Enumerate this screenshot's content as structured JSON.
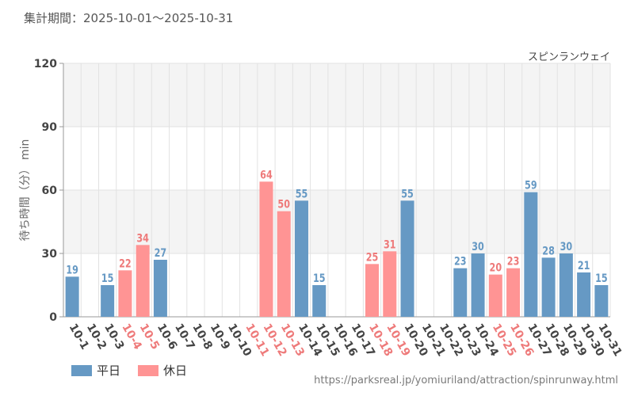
{
  "header": {
    "period_text": "集計期間：2025-10-01～2025-10-31",
    "attraction_name": "スピンランウェイ"
  },
  "footer": {
    "url": "https://parksreal.jp/yomiuriland/attraction/spinrunway.html"
  },
  "colors": {
    "weekday": "#6699c4",
    "holiday": "#ff9494",
    "holiday_label": "#ee7a7a",
    "axis_text": "#444444",
    "band": "#f4f4f4",
    "grid": "#e2e2e2"
  },
  "chart_data": {
    "type": "bar",
    "title": "",
    "xlabel": "",
    "ylabel": "待ち時間（分） min",
    "ylim": [
      0,
      120
    ],
    "yticks": [
      0,
      30,
      60,
      90,
      120
    ],
    "categories": [
      "10-1",
      "10-2",
      "10-3",
      "10-4",
      "10-5",
      "10-6",
      "10-7",
      "10-8",
      "10-9",
      "10-10",
      "10-11",
      "10-12",
      "10-13",
      "10-14",
      "10-15",
      "10-16",
      "10-17",
      "10-18",
      "10-19",
      "10-20",
      "10-21",
      "10-22",
      "10-23",
      "10-24",
      "10-25",
      "10-26",
      "10-27",
      "10-28",
      "10-29",
      "10-30",
      "10-31"
    ],
    "values": [
      19,
      null,
      15,
      22,
      34,
      27,
      null,
      null,
      null,
      null,
      null,
      64,
      50,
      55,
      15,
      null,
      null,
      25,
      31,
      55,
      null,
      null,
      23,
      30,
      20,
      23,
      59,
      28,
      30,
      21,
      15
    ],
    "day_type": [
      "weekday",
      "weekday",
      "weekday",
      "holiday",
      "holiday",
      "weekday",
      "weekday",
      "weekday",
      "weekday",
      "weekday",
      "holiday",
      "holiday",
      "holiday",
      "weekday",
      "weekday",
      "weekday",
      "weekday",
      "holiday",
      "holiday",
      "weekday",
      "weekday",
      "weekday",
      "weekday",
      "weekday",
      "holiday",
      "holiday",
      "weekday",
      "weekday",
      "weekday",
      "weekday",
      "weekday"
    ],
    "legend": [
      {
        "key": "weekday",
        "label": "平日"
      },
      {
        "key": "holiday",
        "label": "休日"
      }
    ],
    "legend_position": "bottom-left"
  }
}
